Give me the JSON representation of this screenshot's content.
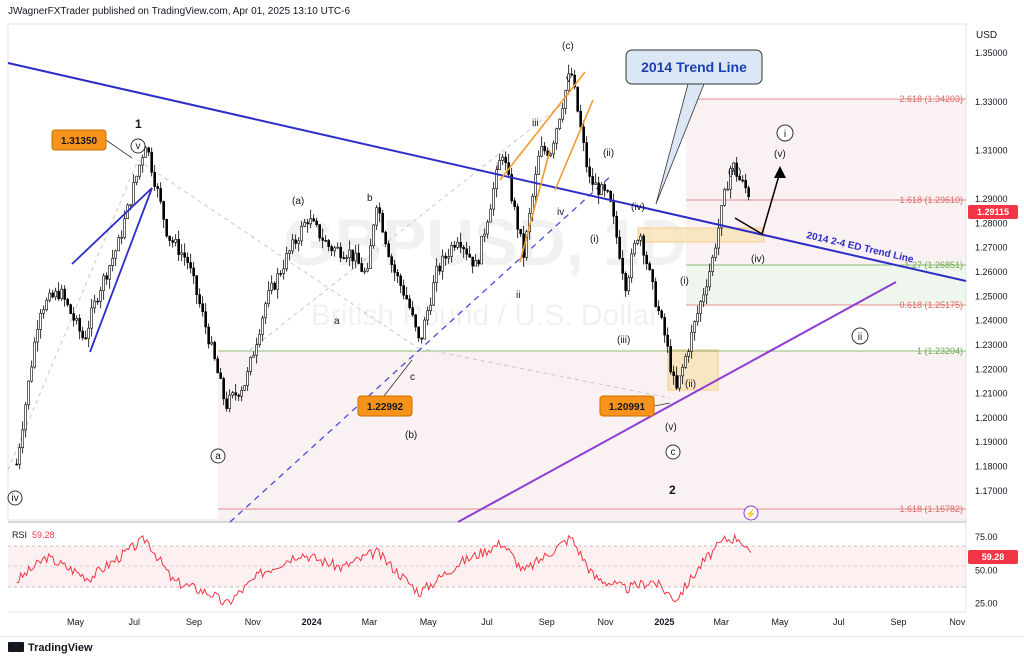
{
  "header": {
    "publisher": "JWagnerFXTrader published on TradingView.com, Apr 01, 2025 13:10 UTC-6",
    "currency": "USD",
    "watermark_symbol": "GBPUSD, 1D",
    "watermark_name": "British Pound / U.S. Dollar"
  },
  "footer": {
    "brand": "TradingView"
  },
  "colors": {
    "trend_2014": "#2d2dc8",
    "ed_channel": "#7a2fc4",
    "candle": "#000000",
    "fib_red": "#e06666",
    "fib_green": "#6aa84f",
    "callout_orange": "#f7931a",
    "callout_blue": "#dbe7f5",
    "rsi": "#f23645",
    "price_tag": "#f23645"
  },
  "chart_data": [
    {
      "type": "line",
      "title": "",
      "x_axis": {
        "type": "date",
        "ticks": [
          "May",
          "Jul",
          "Sep",
          "Nov",
          "2024",
          "Mar",
          "May",
          "Jul",
          "Sep",
          "Nov",
          "2025",
          "Mar",
          "May",
          "Jul",
          "Sep",
          "Nov"
        ]
      },
      "y_axis": {
        "ylim": [
          1.158,
          1.362
        ],
        "ticks": [
          "1.35000",
          "1.33000",
          "1.31000",
          "1.29000",
          "1.28000",
          "1.27000",
          "1.26000",
          "1.25000",
          "1.24000",
          "1.23000",
          "1.22000",
          "1.21000",
          "1.20000",
          "1.19000",
          "1.18000",
          "1.17000"
        ]
      },
      "current_price": "1.29115",
      "series": [
        {
          "style": "candles (approximate close path)",
          "x": [
            "2023-03-01",
            "2023-03-25",
            "2023-04-15",
            "2023-05-10",
            "2023-05-25",
            "2023-06-15",
            "2023-07-13",
            "2023-08-05",
            "2023-08-25",
            "2023-09-15",
            "2023-10-04",
            "2023-10-25",
            "2023-11-15",
            "2023-12-05",
            "2023-12-28",
            "2024-01-20",
            "2024-02-10",
            "2024-02-28",
            "2024-03-08",
            "2024-03-25",
            "2024-04-10",
            "2024-04-22",
            "2024-05-10",
            "2024-06-01",
            "2024-06-20",
            "2024-07-17",
            "2024-08-08",
            "2024-08-25",
            "2024-09-05",
            "2024-09-26",
            "2024-10-15",
            "2024-11-05",
            "2024-11-22",
            "2024-12-06",
            "2024-12-20",
            "2025-01-02",
            "2025-01-13",
            "2025-01-28",
            "2025-02-20",
            "2025-03-04",
            "2025-03-12",
            "2025-03-20",
            "2025-04-01"
          ],
          "values": [
            1.181,
            1.245,
            1.252,
            1.232,
            1.252,
            1.272,
            1.3135,
            1.275,
            1.265,
            1.235,
            1.205,
            1.215,
            1.248,
            1.265,
            1.282,
            1.27,
            1.268,
            1.258,
            1.29,
            1.262,
            1.248,
            1.23,
            1.26,
            1.275,
            1.262,
            1.31,
            1.267,
            1.31,
            1.31,
            1.343,
            1.298,
            1.29,
            1.255,
            1.278,
            1.253,
            1.233,
            1.21,
            1.232,
            1.265,
            1.29,
            1.305,
            1.298,
            1.29115
          ]
        }
      ],
      "fib_levels": [
        {
          "label": "2.618 (1.34203)",
          "value": 1.34203,
          "color": "red"
        },
        {
          "label": "1.618 (1.29610)",
          "value": 1.2961,
          "color": "red"
        },
        {
          "label": "1.27 (1.26851)",
          "value": 1.26851,
          "color": "green"
        },
        {
          "label": "0.618 (1.25175)",
          "value": 1.25175,
          "color": "red"
        },
        {
          "label": "1 (1.23204)",
          "value": 1.23204,
          "color": "green"
        },
        {
          "label": "1.618 (1.16782)",
          "value": 1.16782,
          "color": "red"
        }
      ],
      "trend_lines": [
        {
          "label": "2014 2-4 ED Trend Line",
          "callout": "2014 Trend Line"
        }
      ],
      "price_callouts": [
        "1.31350",
        "1.22992",
        "1.20991"
      ],
      "wave_labels": [
        "1",
        "v",
        "iv",
        "a",
        "(a)",
        "b",
        "a",
        "c",
        "(b)",
        "(c)",
        "v",
        "iii",
        "i",
        "ii",
        "iv",
        "(ii)",
        "(iv)",
        "(i)",
        "(iii)",
        "(v)",
        "c",
        "2",
        "(i)",
        "(ii)",
        "(iii)",
        "(iv)",
        "(v)",
        "i",
        "ii"
      ]
    },
    {
      "type": "line",
      "title": "RSI",
      "legend_value": "59.28",
      "y_axis": {
        "ylim": [
          20,
          85
        ],
        "ticks": [
          "75.00",
          "50.00",
          "25.00"
        ],
        "bands": [
          30,
          70
        ]
      },
      "series": [
        {
          "name": "RSI",
          "x": [
            "2023-03-01",
            "2023-04-01",
            "2023-05-15",
            "2023-07-13",
            "2023-08-10",
            "2023-09-20",
            "2023-10-04",
            "2023-11-10",
            "2023-12-20",
            "2024-02-01",
            "2024-03-08",
            "2024-04-22",
            "2024-06-01",
            "2024-07-17",
            "2024-08-08",
            "2024-09-26",
            "2024-10-20",
            "2024-11-22",
            "2024-12-20",
            "2025-01-13",
            "2025-02-10",
            "2025-03-04",
            "2025-03-20",
            "2025-04-01"
          ],
          "values": [
            42,
            60,
            44,
            74,
            42,
            32,
            24,
            48,
            63,
            52,
            64,
            33,
            55,
            71,
            49,
            75,
            45,
            36,
            42,
            28,
            56,
            73,
            75,
            59.28
          ]
        }
      ]
    }
  ]
}
